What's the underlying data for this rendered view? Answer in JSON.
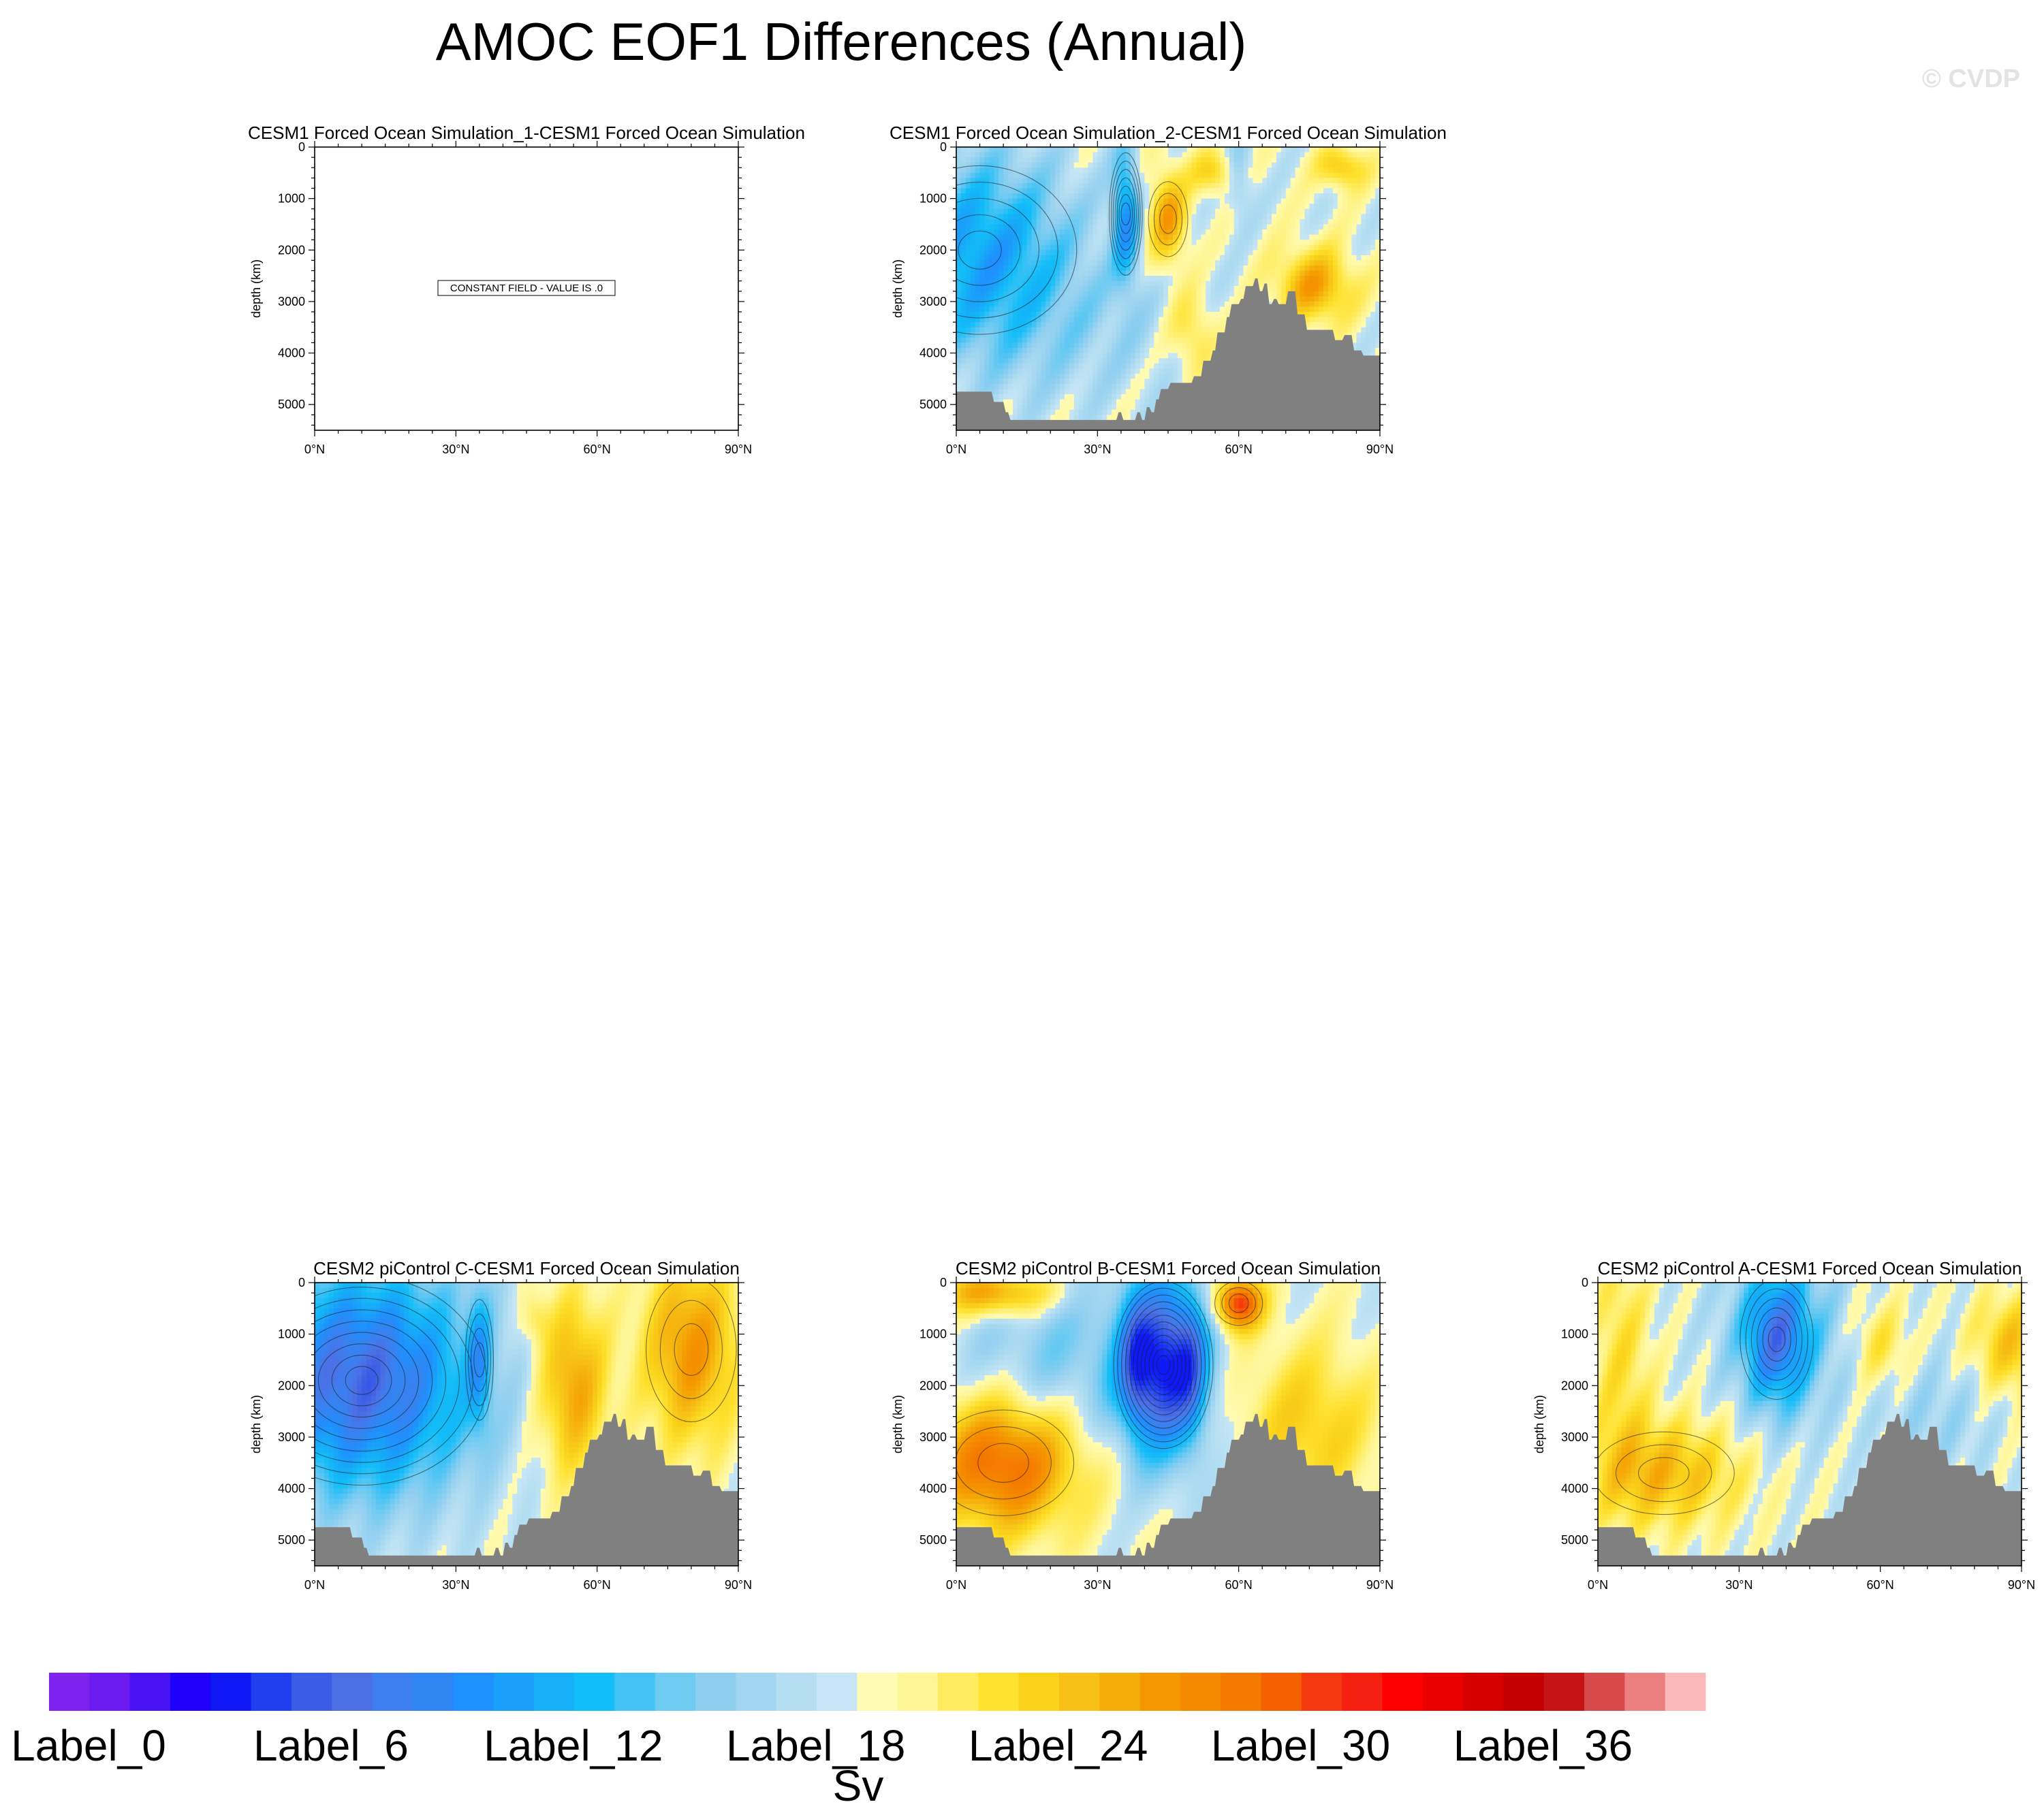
{
  "figure": {
    "title": "AMOC EOF1 Differences (Annual)",
    "watermark": "© CVDP",
    "units": "Sv"
  },
  "chart_data": [
    {
      "type": "contour",
      "title": "CESM1 Forced Ocean Simulation_1-CESM1 Forced Ocean Simulation",
      "xlabel": "",
      "ylabel": "depth (km)",
      "xlim": [
        0,
        90
      ],
      "ylim": [
        5500,
        0
      ],
      "xticks": [
        "0°N",
        "30°N",
        "60°N",
        "90°N"
      ],
      "yticks": [
        "0",
        "1000",
        "2000",
        "3000",
        "4000",
        "5000"
      ],
      "note": "CONSTANT FIELD - VALUE IS .0",
      "pattern": "none"
    },
    {
      "type": "contour",
      "title": "CESM1 Forced Ocean Simulation_2-CESM1 Forced Ocean Simulation",
      "xlabel": "",
      "ylabel": "depth (km)",
      "xlim": [
        0,
        90
      ],
      "ylim": [
        5500,
        0
      ],
      "xticks": [
        "0°N",
        "30°N",
        "60°N",
        "90°N"
      ],
      "yticks": [
        "0",
        "1000",
        "2000",
        "3000",
        "4000",
        "5000"
      ],
      "pattern": "A"
    },
    {
      "type": "contour",
      "title": "CESM2 piControl C-CESM1 Forced Ocean Simulation",
      "xlabel": "",
      "ylabel": "depth (km)",
      "xlim": [
        0,
        90
      ],
      "ylim": [
        5500,
        0
      ],
      "xticks": [
        "0°N",
        "30°N",
        "60°N",
        "90°N"
      ],
      "yticks": [
        "0",
        "1000",
        "2000",
        "3000",
        "4000",
        "5000"
      ],
      "pattern": "C"
    },
    {
      "type": "contour",
      "title": "CESM2 piControl B-CESM1 Forced Ocean Simulation",
      "xlabel": "",
      "ylabel": "depth (km)",
      "xlim": [
        0,
        90
      ],
      "ylim": [
        5500,
        0
      ],
      "xticks": [
        "0°N",
        "30°N",
        "60°N",
        "90°N"
      ],
      "yticks": [
        "0",
        "1000",
        "2000",
        "3000",
        "4000",
        "5000"
      ],
      "pattern": "B"
    },
    {
      "type": "contour",
      "title": "CESM2 piControl A-CESM1 Forced Ocean Simulation",
      "xlabel": "",
      "ylabel": "depth (km)",
      "xlim": [
        0,
        90
      ],
      "ylim": [
        5500,
        0
      ],
      "xticks": [
        "0°N",
        "30°N",
        "60°N",
        "90°N"
      ],
      "yticks": [
        "0",
        "1000",
        "2000",
        "3000",
        "4000",
        "5000"
      ],
      "pattern": "D"
    }
  ],
  "colorbar": {
    "colors": [
      "#7f22f0",
      "#6b1af0",
      "#4912f2",
      "#1f00fa",
      "#0f19f5",
      "#2040f0",
      "#3a5ce6",
      "#4c70e4",
      "#3d7ef0",
      "#2f86f2",
      "#1e90ff",
      "#1aa0fa",
      "#15b0f8",
      "#12bef8",
      "#45c2f5",
      "#6ecbf2",
      "#8ecff0",
      "#a2d6f0",
      "#b5def2",
      "#c7e6f5",
      "#fffbb5",
      "#fff594",
      "#ffec60",
      "#ffe130",
      "#fad21a",
      "#f7c117",
      "#f5ad0a",
      "#f59800",
      "#f58a00",
      "#f57a00",
      "#f56000",
      "#f53a10",
      "#f52010",
      "#ff0000",
      "#eb0000",
      "#d60000",
      "#c40000",
      "#c41414",
      "#d74a4a",
      "#ec8080",
      "#fbb8b8"
    ],
    "labels": [
      "Label_0",
      "Label_6",
      "Label_12",
      "Label_18",
      "Label_24",
      "Label_30",
      "Label_36"
    ],
    "label_indices": [
      0,
      6,
      12,
      18,
      24,
      30,
      36
    ]
  },
  "colors": {
    "topography": "#808080",
    "contour_line": "#1a1a1a",
    "frame": "#000000"
  }
}
